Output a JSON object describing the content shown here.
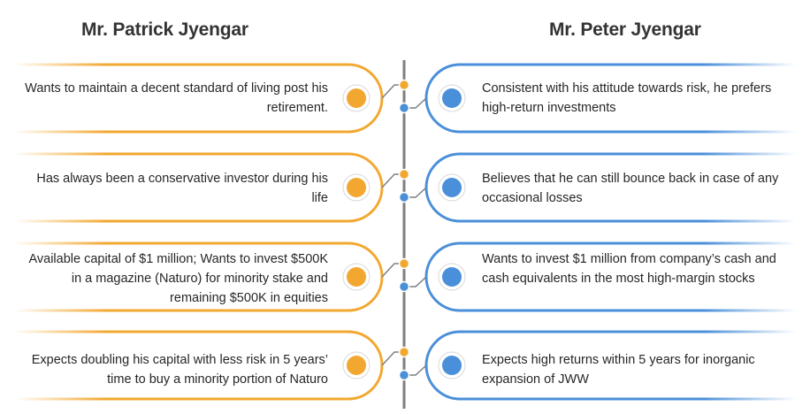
{
  "headings": {
    "left": "Mr. Patrick Jyengar",
    "right": "Mr. Peter Jyengar"
  },
  "colors": {
    "left_accent": "#f2a830",
    "right_accent": "#4a8fd9",
    "spine": "#7f7f7f",
    "text": "#262626"
  },
  "rows": [
    {
      "left": "Wants to maintain a decent standard of living post his retirement.",
      "right": "Consistent with his attitude towards risk, he prefers high-return investments"
    },
    {
      "left": "Has always been a conservative investor during his life",
      "right": "Believes that he can still bounce back in case of any occasional losses"
    },
    {
      "left": "Available capital of $1 million; Wants to invest $500K in a magazine (Naturo) for minority stake and remaining $500K in equities",
      "right": "Wants to invest $1 million from company’s cash and cash equivalents in the most high-margin stocks"
    },
    {
      "left": "Expects doubling his capital with less risk in 5 years’ time to buy a minority portion of Naturo",
      "right": "Expects high returns within 5 years for inorganic expansion of JWW"
    }
  ]
}
